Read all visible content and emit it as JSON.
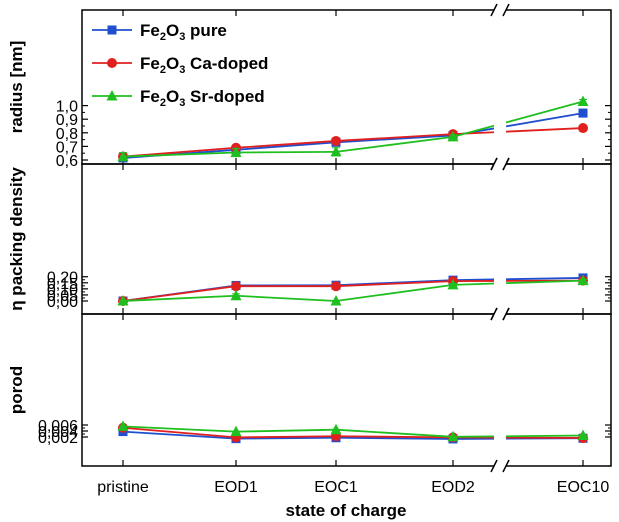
{
  "chart_data": {
    "type": "line",
    "x_title": "state of charge",
    "categories": [
      "pristine",
      "EOD1",
      "EOC1",
      "EOD2",
      "EOC10"
    ],
    "axis_break_between": [
      "EOD2",
      "EOC10"
    ],
    "legend": {
      "placement": "top-left of top panel",
      "entries": [
        {
          "prefix": "Fe",
          "sub1": "2",
          "mid": "O",
          "sub2": "3",
          "suffix": " pure"
        },
        {
          "prefix": "Fe",
          "sub1": "2",
          "mid": "O",
          "sub2": "3",
          "suffix": " Ca-doped"
        },
        {
          "prefix": "Fe",
          "sub1": "2",
          "mid": "O",
          "sub2": "3",
          "suffix": " Sr-doped"
        }
      ]
    },
    "series_styles": [
      {
        "color": "#1f4fcf",
        "marker": "square"
      },
      {
        "color": "#e01f1f",
        "marker": "circle"
      },
      {
        "color": "#1fbf1f",
        "marker": "triangle"
      }
    ],
    "panels": [
      {
        "ylabel": "radius [nm]",
        "ylim": [
          0.6,
          1.05
        ],
        "yticks": [
          0.6,
          0.7,
          0.8,
          0.9,
          1.0
        ],
        "ytick_labels": [
          "0,6",
          "0,7",
          "0,8",
          "0,9",
          "1,0"
        ],
        "series": [
          {
            "values": [
              0.615,
              0.675,
              0.73,
              0.78,
              0.945
            ],
            "errors": [
              0.01,
              0.015,
              0.015,
              0.012,
              0.015
            ]
          },
          {
            "values": [
              0.625,
              0.69,
              0.74,
              0.79,
              0.835
            ],
            "errors": [
              0.015,
              0.015,
              0.015,
              0.012,
              0.015
            ]
          },
          {
            "values": [
              0.625,
              0.655,
              0.66,
              0.77,
              1.03
            ],
            "errors": [
              0.03,
              0.03,
              0.03,
              0.015,
              0.015
            ]
          }
        ]
      },
      {
        "ylabel": "η packing density",
        "ylim": [
          -0.01,
          0.21
        ],
        "yticks": [
          0.0,
          0.05,
          0.1,
          0.15,
          0.2
        ],
        "ytick_labels": [
          "0,00",
          "0,05",
          "0,10",
          "0,15",
          "0,20"
        ],
        "series": [
          {
            "values": [
              0.0,
              0.128,
              0.13,
              0.172,
              0.19
            ],
            "errors": [
              0.003,
              0.01,
              0.01,
              0.008,
              0.008
            ]
          },
          {
            "values": [
              0.0,
              0.122,
              0.122,
              0.164,
              0.168
            ],
            "errors": [
              0.003,
              0.01,
              0.01,
              0.008,
              0.008
            ]
          },
          {
            "values": [
              0.0,
              0.043,
              0.0,
              0.133,
              0.168
            ],
            "errors": [
              0.003,
              0.016,
              0.003,
              0.01,
              0.01
            ]
          }
        ]
      },
      {
        "ylabel": "porod",
        "ylim": [
          0.0013,
          0.006
        ],
        "yticks": [
          0.002,
          0.004,
          0.006
        ],
        "ytick_labels": [
          "0,002",
          "0,004",
          "0,006"
        ],
        "series": [
          {
            "values": [
              0.0038,
              0.00145,
              0.00175,
              0.00136,
              0.00158
            ],
            "errors": [
              4e-05,
              4e-05,
              4e-05,
              4e-05,
              4e-05
            ]
          },
          {
            "values": [
              0.00508,
              0.00187,
              0.00225,
              0.00187,
              0.00168
            ],
            "errors": [
              0.00012,
              5e-05,
              5e-05,
              5e-05,
              5e-05
            ]
          },
          {
            "values": [
              0.00553,
              0.00378,
              0.00443,
              0.00207,
              0.0025
            ],
            "errors": [
              0.00012,
              0.0001,
              0.0001,
              6e-05,
              6e-05
            ]
          }
        ]
      }
    ]
  }
}
